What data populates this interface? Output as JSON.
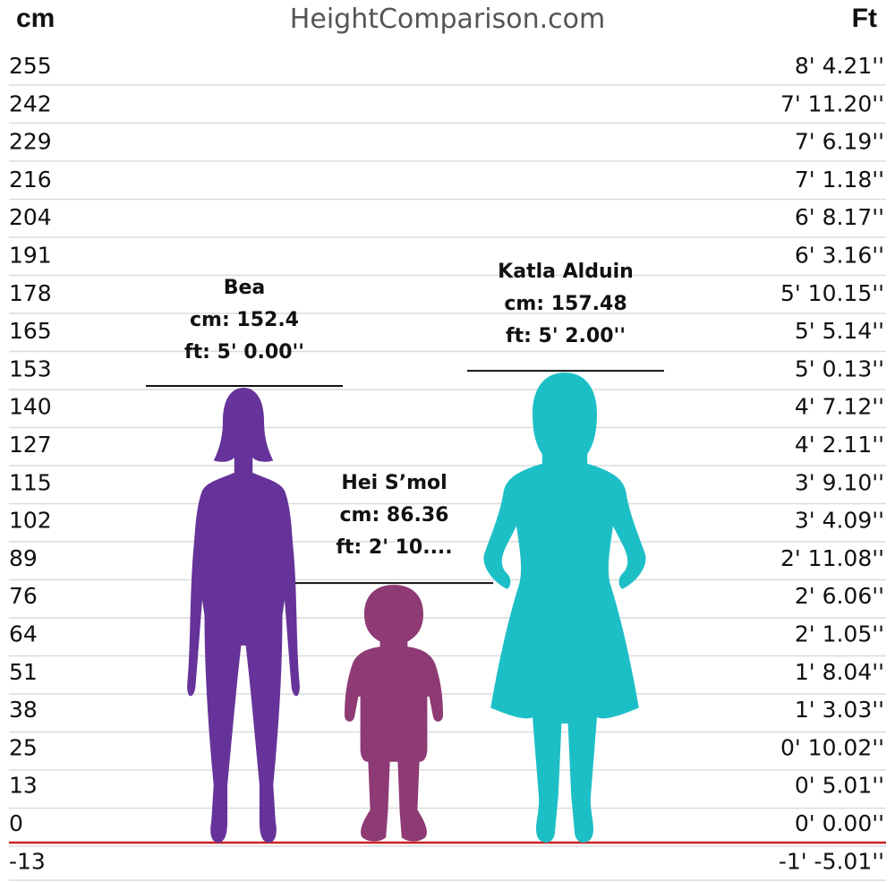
{
  "header": {
    "left_unit": "cm",
    "site": "HeightComparison.com",
    "right_unit": "Ft"
  },
  "chart_data": {
    "type": "bar",
    "ylim": [
      -13,
      255
    ],
    "ticks_cm": [
      "255",
      "242",
      "229",
      "216",
      "204",
      "191",
      "178",
      "165",
      "153",
      "140",
      "127",
      "115",
      "102",
      "89",
      "76",
      "64",
      "51",
      "38",
      "25",
      "13",
      "0",
      "-13"
    ],
    "ticks_ft": [
      "8' 4.21''",
      "7' 11.20''",
      "7' 6.19''",
      "7' 1.18''",
      "6' 8.17''",
      "6' 3.16''",
      "5' 10.15''",
      "5' 5.14''",
      "5' 0.13''",
      "4' 7.12''",
      "4' 2.11''",
      "3' 9.10''",
      "3' 4.09''",
      "2' 11.08''",
      "2' 6.06''",
      "2' 1.05''",
      "1' 8.04''",
      "1' 3.03''",
      "0' 10.02''",
      "0' 5.01''",
      "0' 0.00''",
      "-1' -5.01''"
    ],
    "categories": [
      "Bea",
      "Hei S’mol",
      "Katla Alduin"
    ],
    "values": [
      152.4,
      86.36,
      157.48
    ],
    "series": [
      {
        "name": "Bea",
        "cm_label": "cm: 152.4",
        "ft_label": "ft: 5' 0.00''",
        "color": "#653399",
        "figure": "woman-silhouette-icon"
      },
      {
        "name": "Hei S’mol",
        "cm_label": "cm: 86.36",
        "ft_label": "ft: 2' 10....",
        "color": "#8e3a75",
        "figure": "toddler-silhouette-icon"
      },
      {
        "name": "Katla Alduin",
        "cm_label": "cm: 157.48",
        "ft_label": "ft: 5' 2.00''",
        "color": "#1dbfc6",
        "figure": "woman-dress-silhouette-icon"
      }
    ],
    "grid": true,
    "baseline_color": "#cc2222"
  }
}
